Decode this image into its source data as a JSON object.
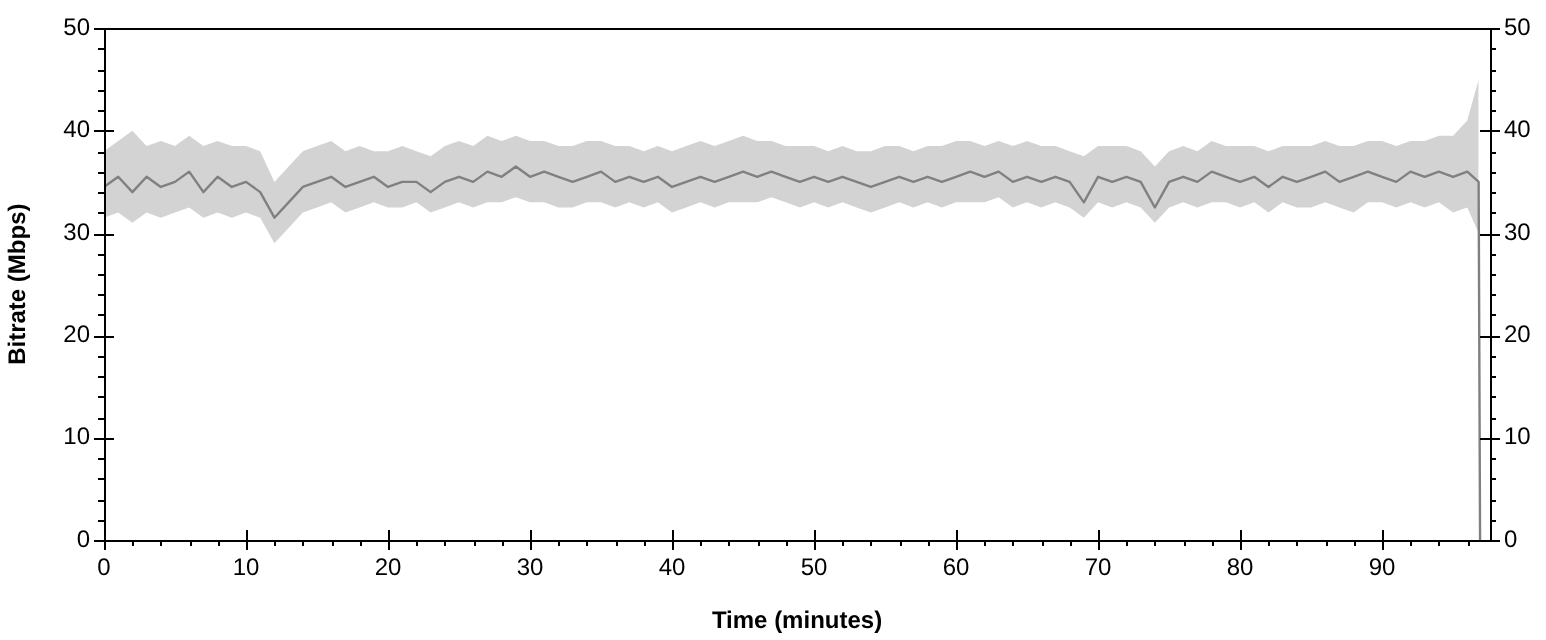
{
  "chart_data": {
    "type": "line",
    "xlabel": "Time (minutes)",
    "ylabel": "Bitrate (Mbps)",
    "xlim": [
      0,
      97.6
    ],
    "xticks": [
      0,
      {
        "value": 2,
        "label": null
      },
      {
        "value": 4,
        "label": null
      },
      {
        "value": 6,
        "label": null
      },
      {
        "value": 8,
        "label": null
      },
      10,
      {
        "value": 12,
        "label": null
      },
      {
        "value": 14,
        "label": null
      },
      {
        "value": 16,
        "label": null
      },
      {
        "value": 18,
        "label": null
      },
      20,
      {
        "value": 22,
        "label": null
      },
      {
        "value": 24,
        "label": null
      },
      {
        "value": 26,
        "label": null
      },
      {
        "value": 28,
        "label": null
      },
      30,
      {
        "value": 32,
        "label": null
      },
      {
        "value": 34,
        "label": null
      },
      {
        "value": 36,
        "label": null
      },
      {
        "value": 38,
        "label": null
      },
      40,
      {
        "value": 42,
        "label": null
      },
      {
        "value": 44,
        "label": null
      },
      {
        "value": 46,
        "label": null
      },
      {
        "value": 48,
        "label": null
      },
      50,
      {
        "value": 52,
        "label": null
      },
      {
        "value": 54,
        "label": null
      },
      {
        "value": 56,
        "label": null
      },
      {
        "value": 58,
        "label": null
      },
      60,
      {
        "value": 62,
        "label": null
      },
      {
        "value": 64,
        "label": null
      },
      {
        "value": 66,
        "label": null
      },
      {
        "value": 68,
        "label": null
      },
      70,
      {
        "value": 72,
        "label": null
      },
      {
        "value": 74,
        "label": null
      },
      {
        "value": 76,
        "label": null
      },
      {
        "value": 78,
        "label": null
      },
      80,
      {
        "value": 82,
        "label": null
      },
      {
        "value": 84,
        "label": null
      },
      {
        "value": 86,
        "label": null
      },
      {
        "value": 88,
        "label": null
      },
      90,
      {
        "value": 92,
        "label": null
      },
      {
        "value": 94,
        "label": null
      },
      {
        "value": 96,
        "label": null
      }
    ],
    "ylim": [
      0,
      50
    ],
    "yticks": [
      0,
      {
        "value": 2,
        "label": null
      },
      {
        "value": 4,
        "label": null
      },
      {
        "value": 6,
        "label": null
      },
      {
        "value": 8,
        "label": null
      },
      10,
      {
        "value": 12,
        "label": null
      },
      {
        "value": 14,
        "label": null
      },
      {
        "value": 16,
        "label": null
      },
      {
        "value": 18,
        "label": null
      },
      20,
      {
        "value": 22,
        "label": null
      },
      {
        "value": 24,
        "label": null
      },
      {
        "value": 26,
        "label": null
      },
      {
        "value": 28,
        "label": null
      },
      30,
      {
        "value": 32,
        "label": null
      },
      {
        "value": 34,
        "label": null
      },
      {
        "value": 36,
        "label": null
      },
      {
        "value": 38,
        "label": null
      },
      40,
      {
        "value": 42,
        "label": null
      },
      {
        "value": 44,
        "label": null
      },
      {
        "value": 46,
        "label": null
      },
      {
        "value": 48,
        "label": null
      },
      50
    ],
    "y2lim": [
      0,
      50
    ],
    "y2ticks": [
      0,
      {
        "value": 2,
        "label": null
      },
      {
        "value": 4,
        "label": null
      },
      {
        "value": 6,
        "label": null
      },
      {
        "value": 8,
        "label": null
      },
      10,
      {
        "value": 12,
        "label": null
      },
      {
        "value": 14,
        "label": null
      },
      {
        "value": 16,
        "label": null
      },
      {
        "value": 18,
        "label": null
      },
      20,
      {
        "value": 22,
        "label": null
      },
      {
        "value": 24,
        "label": null
      },
      {
        "value": 26,
        "label": null
      },
      {
        "value": 28,
        "label": null
      },
      30,
      {
        "value": 32,
        "label": null
      },
      {
        "value": 34,
        "label": null
      },
      {
        "value": 36,
        "label": null
      },
      {
        "value": 38,
        "label": null
      },
      40,
      {
        "value": 42,
        "label": null
      },
      {
        "value": 44,
        "label": null
      },
      {
        "value": 46,
        "label": null
      },
      {
        "value": 48,
        "label": null
      },
      50
    ],
    "grid": false,
    "legend": false,
    "marker": "none",
    "line_style": "solid",
    "x": [
      0,
      1,
      2,
      3,
      4,
      5,
      6,
      7,
      8,
      9,
      10,
      11,
      12,
      13,
      14,
      15,
      16,
      17,
      18,
      19,
      20,
      21,
      22,
      23,
      24,
      25,
      26,
      27,
      28,
      29,
      30,
      31,
      32,
      33,
      34,
      35,
      36,
      37,
      38,
      39,
      40,
      41,
      42,
      43,
      44,
      45,
      46,
      47,
      48,
      49,
      50,
      51,
      52,
      53,
      54,
      55,
      56,
      57,
      58,
      59,
      60,
      61,
      62,
      63,
      64,
      65,
      66,
      67,
      68,
      69,
      70,
      71,
      72,
      73,
      74,
      75,
      76,
      77,
      78,
      79,
      80,
      81,
      82,
      83,
      84,
      85,
      86,
      87,
      88,
      89,
      90,
      91,
      92,
      93,
      94,
      95,
      96,
      96.8,
      96.9
    ],
    "series": [
      {
        "color": "#808080",
        "values": [
          34.5,
          35.5,
          34,
          35.5,
          34.5,
          35,
          36,
          34,
          35.5,
          34.5,
          35,
          34,
          31.5,
          33,
          34.5,
          35,
          35.5,
          34.5,
          35,
          35.5,
          34.5,
          35,
          35,
          34,
          35,
          35.5,
          35,
          36,
          35.5,
          36.5,
          35.5,
          36,
          35.5,
          35,
          35.5,
          36,
          35,
          35.5,
          35,
          35.5,
          34.5,
          35,
          35.5,
          35,
          35.5,
          36,
          35.5,
          36,
          35.5,
          35,
          35.5,
          35,
          35.5,
          35,
          34.5,
          35,
          35.5,
          35,
          35.5,
          35,
          35.5,
          36,
          35.5,
          36,
          35,
          35.5,
          35,
          35.5,
          35,
          33,
          35.5,
          35,
          35.5,
          35,
          32.5,
          35,
          35.5,
          35,
          36,
          35.5,
          35,
          35.5,
          34.5,
          35.5,
          35,
          35.5,
          36,
          35,
          35.5,
          36,
          35.5,
          35,
          36,
          35.5,
          36,
          35.5,
          36,
          35,
          0
        ],
        "lower": [
          31.5,
          32,
          31,
          32,
          31.5,
          32,
          32.5,
          31.5,
          32,
          31.5,
          32,
          31.5,
          29,
          30.5,
          32,
          32.5,
          33,
          32,
          32.5,
          33,
          32.5,
          32.5,
          33,
          32,
          32.5,
          33,
          32.5,
          33,
          33,
          33.5,
          33,
          33,
          32.5,
          32.5,
          33,
          33,
          32.5,
          33,
          32.5,
          33,
          32,
          32.5,
          33,
          32.5,
          33,
          33,
          33,
          33.5,
          33,
          32.5,
          33,
          32.5,
          33,
          32.5,
          32,
          32.5,
          33,
          32.5,
          33,
          32.5,
          33,
          33,
          33,
          33.5,
          32.5,
          33,
          32.5,
          33,
          32.5,
          31.5,
          33,
          32.5,
          33,
          32.5,
          31,
          32.5,
          33,
          32.5,
          33,
          33,
          32.5,
          33,
          32,
          33,
          32.5,
          32.5,
          33,
          32.5,
          32,
          33,
          33,
          32.5,
          33,
          32.5,
          33,
          32,
          32.5,
          30,
          null
        ],
        "upper": [
          38,
          39,
          40,
          38.5,
          39,
          38.5,
          39.5,
          38.5,
          39,
          38.5,
          38.5,
          38,
          35,
          36.5,
          38,
          38.5,
          39,
          38,
          38.5,
          38,
          38,
          38.5,
          38,
          37.5,
          38.5,
          39,
          38.5,
          39.5,
          39,
          39.5,
          39,
          39,
          38.5,
          38.5,
          39,
          39,
          38.5,
          38.5,
          38,
          38.5,
          38,
          38.5,
          39,
          38.5,
          39,
          39.5,
          39,
          39,
          38.5,
          38.5,
          38.5,
          38,
          38.5,
          38,
          38,
          38.5,
          38.5,
          38,
          38.5,
          38.5,
          39,
          39,
          38.5,
          39,
          38.5,
          39,
          38.5,
          38.5,
          38,
          37.5,
          38.5,
          38.5,
          38.5,
          38,
          36.5,
          38,
          38.5,
          38,
          39,
          38.5,
          38.5,
          38.5,
          38,
          38.5,
          38.5,
          38.5,
          39,
          38.5,
          38.5,
          39,
          39,
          38.5,
          39,
          39,
          39.5,
          39.5,
          41,
          45,
          null
        ]
      }
    ]
  }
}
